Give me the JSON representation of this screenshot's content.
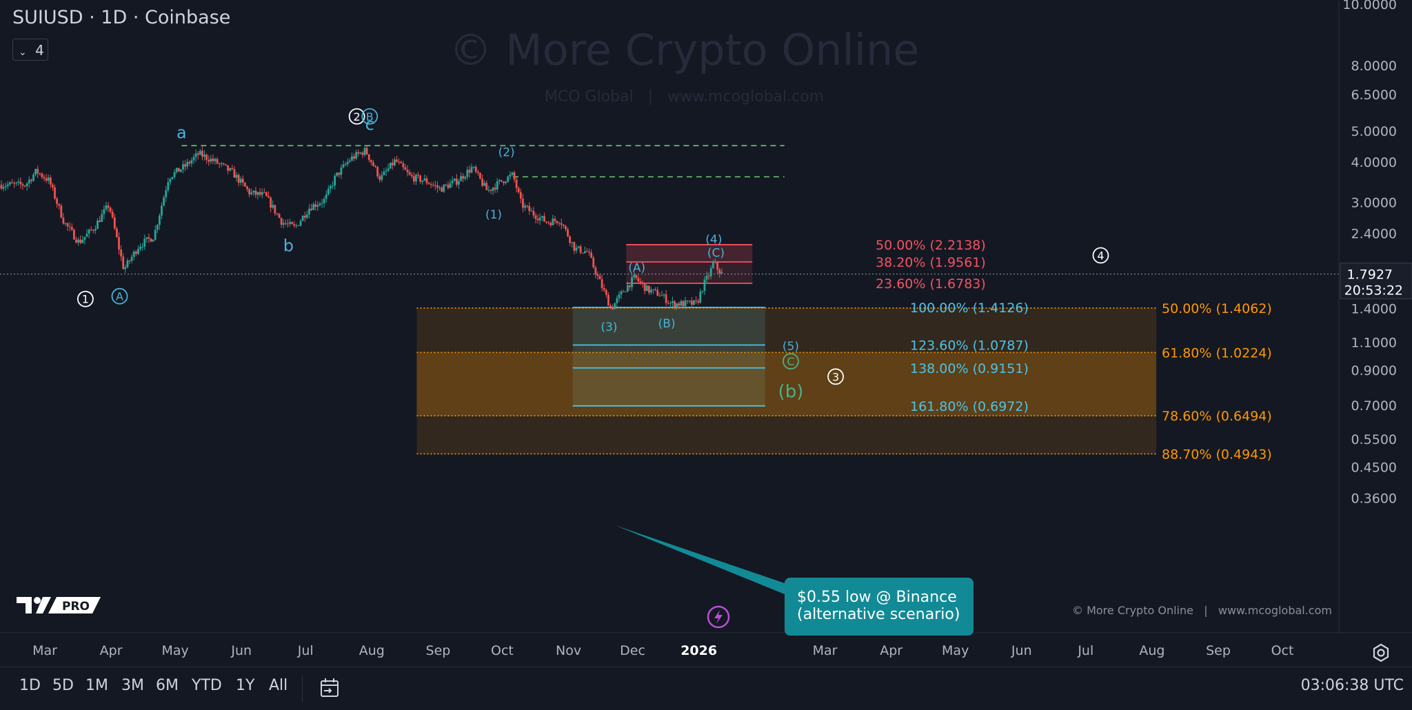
{
  "header": {
    "symbol_title": "SUIUSD · 1D · Coinbase",
    "indicator_count": "4"
  },
  "watermark": {
    "main": "© More Crypto Online",
    "sub": "MCO Global   |   www.mcoglobal.com"
  },
  "copyright": "© More Crypto Online   |   www.mcoglobal.com",
  "callout": {
    "line1": "$0.55 low @ Binance",
    "line2": "(alternative scenario)"
  },
  "timeframes": [
    "1D",
    "5D",
    "1M",
    "3M",
    "6M",
    "YTD",
    "1Y",
    "All"
  ],
  "clock": "03:06:38 UTC",
  "colors": {
    "background": "#141823",
    "up_candle": "#26a69a",
    "down_candle": "#ef5350",
    "red_zone": "#f7525f",
    "blue_zone": "#4dc3e8",
    "orange_zone": "#ff9800",
    "green_dashed": "#6ccf6c",
    "wave_cyan": "#46b4d8",
    "wave_green": "#4caf8a",
    "callout": "#128a96"
  },
  "chart_data": {
    "type": "candlestick",
    "symbol": "SUIUSD",
    "interval": "1D",
    "exchange": "Coinbase",
    "y_scale": "log",
    "x_ticks": [
      "Mar",
      "Apr",
      "May",
      "Jun",
      "Jul",
      "Aug",
      "Sep",
      "Oct",
      "Nov",
      "Dec",
      "2026",
      "Mar",
      "Apr",
      "May",
      "Jun",
      "Jul",
      "Aug",
      "Sep",
      "Oct"
    ],
    "y_ticks": [
      "10.0000",
      "8.0000",
      "6.5000",
      "5.0000",
      "4.0000",
      "3.0000",
      "2.4000",
      "1.4000",
      "1.1000",
      "0.9000",
      "0.7000",
      "0.5500",
      "0.4500",
      "0.3600"
    ],
    "price_tick_values": [
      10,
      8,
      6.5,
      5,
      4,
      3,
      2.4,
      1.4,
      1.1,
      0.9,
      0.7,
      0.55,
      0.45,
      0.36
    ],
    "last_price": "1.7927",
    "last_price_value": 1.7927,
    "bar_countdown": "20:53:22",
    "price_path": [
      {
        "date": "2025-02-20",
        "price": 3.4
      },
      {
        "date": "2025-02-25",
        "price": 3.75
      },
      {
        "date": "2025-03-03",
        "price": 3.5
      },
      {
        "date": "2025-03-10",
        "price": 2.6
      },
      {
        "date": "2025-03-17",
        "price": 2.25
      },
      {
        "date": "2025-03-24",
        "price": 2.5
      },
      {
        "date": "2025-03-31",
        "price": 2.95
      },
      {
        "date": "2025-04-07",
        "price": 1.85
      },
      {
        "date": "2025-04-14",
        "price": 2.2
      },
      {
        "date": "2025-04-21",
        "price": 2.35
      },
      {
        "date": "2025-04-28",
        "price": 3.6
      },
      {
        "date": "2025-05-06",
        "price": 3.9
      },
      {
        "date": "2025-05-12",
        "price": 4.25
      },
      {
        "date": "2025-05-20",
        "price": 4.0
      },
      {
        "date": "2025-05-28",
        "price": 3.7
      },
      {
        "date": "2025-06-05",
        "price": 3.2
      },
      {
        "date": "2025-06-12",
        "price": 3.15
      },
      {
        "date": "2025-06-20",
        "price": 2.6
      },
      {
        "date": "2025-06-26",
        "price": 2.5
      },
      {
        "date": "2025-07-03",
        "price": 2.9
      },
      {
        "date": "2025-07-10",
        "price": 3.05
      },
      {
        "date": "2025-07-15",
        "price": 3.6
      },
      {
        "date": "2025-07-22",
        "price": 4.1
      },
      {
        "date": "2025-07-29",
        "price": 4.35
      },
      {
        "date": "2025-08-05",
        "price": 3.55
      },
      {
        "date": "2025-08-12",
        "price": 4.05
      },
      {
        "date": "2025-08-19",
        "price": 3.6
      },
      {
        "date": "2025-08-26",
        "price": 3.5
      },
      {
        "date": "2025-09-02",
        "price": 3.3
      },
      {
        "date": "2025-09-10",
        "price": 3.5
      },
      {
        "date": "2025-09-17",
        "price": 3.85
      },
      {
        "date": "2025-09-24",
        "price": 3.25
      },
      {
        "date": "2025-10-01",
        "price": 3.5
      },
      {
        "date": "2025-10-06",
        "price": 3.65
      },
      {
        "date": "2025-10-10",
        "price": 2.95
      },
      {
        "date": "2025-10-16",
        "price": 2.75
      },
      {
        "date": "2025-10-22",
        "price": 2.6
      },
      {
        "date": "2025-10-28",
        "price": 2.65
      },
      {
        "date": "2025-11-04",
        "price": 2.15
      },
      {
        "date": "2025-11-10",
        "price": 2.1
      },
      {
        "date": "2025-11-14",
        "price": 1.8
      },
      {
        "date": "2025-11-21",
        "price": 1.4
      },
      {
        "date": "2025-11-27",
        "price": 1.6
      },
      {
        "date": "2025-12-02",
        "price": 1.75
      },
      {
        "date": "2025-12-08",
        "price": 1.6
      },
      {
        "date": "2025-12-14",
        "price": 1.55
      },
      {
        "date": "2025-12-19",
        "price": 1.45
      },
      {
        "date": "2025-12-26",
        "price": 1.45
      },
      {
        "date": "2025-12-31",
        "price": 1.45
      },
      {
        "date": "2026-01-03",
        "price": 1.65
      },
      {
        "date": "2026-01-06",
        "price": 1.8
      },
      {
        "date": "2026-01-08",
        "price": 1.95
      },
      {
        "date": "2026-01-10",
        "price": 1.85
      },
      {
        "date": "2026-01-12",
        "price": 1.7927
      }
    ],
    "zones": [
      {
        "name": "red-fib-top",
        "from_date": "2025-11-28",
        "to_date": "2026-01-26",
        "low": 1.9561,
        "high": 2.2138,
        "color": "#f7525f"
      },
      {
        "name": "red-fib-bottom",
        "from_date": "2025-11-28",
        "to_date": "2026-01-26",
        "low": 1.6783,
        "high": 1.9561,
        "color": "#f7525f"
      },
      {
        "name": "blue-fib",
        "from_date": "2025-11-03",
        "to_date": "2026-02-01",
        "low": 0.6972,
        "high": 1.4126,
        "color": "#4dc3e8"
      },
      {
        "name": "orange-fib-outer",
        "from_date": "2025-08-22",
        "to_date": "2026-08-03",
        "low": 0.4943,
        "high": 1.4062,
        "color": "#ff9800"
      },
      {
        "name": "orange-fib-inner",
        "from_date": "2025-08-22",
        "to_date": "2026-08-03",
        "low": 0.6494,
        "high": 1.0224,
        "color": "#ff9800"
      }
    ],
    "fib_levels": [
      {
        "label": "50.00% (2.2138)",
        "price": 2.2138,
        "group": "red"
      },
      {
        "label": "38.20% (1.9561)",
        "price": 1.9561,
        "group": "red"
      },
      {
        "label": "23.60% (1.6783)",
        "price": 1.6783,
        "group": "red"
      },
      {
        "label": "100.00% (1.4126)",
        "price": 1.4126,
        "group": "blue"
      },
      {
        "label": "123.60% (1.0787)",
        "price": 1.0787,
        "group": "blue"
      },
      {
        "label": "138.00% (0.9151)",
        "price": 0.9151,
        "group": "blue"
      },
      {
        "label": "161.80% (0.6972)",
        "price": 0.6972,
        "group": "blue"
      },
      {
        "label": "50.00% (1.4062)",
        "price": 1.4062,
        "group": "orange"
      },
      {
        "label": "61.80% (1.0224)",
        "price": 1.0224,
        "group": "orange"
      },
      {
        "label": "78.60% (0.6494)",
        "price": 0.6494,
        "group": "orange"
      },
      {
        "label": "88.70% (0.4943)",
        "price": 0.4943,
        "group": "orange"
      }
    ],
    "dashed_lines": [
      {
        "price": 4.5,
        "from_date": "2025-05-04",
        "to_date": "2026-02-10"
      },
      {
        "price": 3.6,
        "from_date": "2025-10-06",
        "to_date": "2026-02-10"
      }
    ],
    "wave_labels": [
      {
        "text": "1",
        "style": "circle-white",
        "date": "2025-03-20",
        "price": 1.5
      },
      {
        "text": "A",
        "style": "circle-cyan",
        "date": "2025-04-05",
        "price": 1.53
      },
      {
        "text": "a",
        "style": "cyan",
        "date": "2025-05-04",
        "price": 4.95
      },
      {
        "text": "b",
        "style": "cyan",
        "date": "2025-06-23",
        "price": 2.2
      },
      {
        "text": "2",
        "style": "circle-white",
        "date": "2025-07-25",
        "price": 5.55
      },
      {
        "text": "B",
        "style": "circle-cyan",
        "date": "2025-07-31",
        "price": 5.55
      },
      {
        "text": "c",
        "style": "cyan",
        "date": "2025-07-31",
        "price": 5.25
      },
      {
        "text": "(2)",
        "style": "cyan-small",
        "date": "2025-10-03",
        "price": 4.3
      },
      {
        "text": "(1)",
        "style": "cyan-small",
        "date": "2025-09-27",
        "price": 2.75
      },
      {
        "text": "(A)",
        "style": "cyan-small",
        "date": "2025-12-03",
        "price": 1.88
      },
      {
        "text": "(3)",
        "style": "cyan-small",
        "date": "2025-11-20",
        "price": 1.23
      },
      {
        "text": "(B)",
        "style": "cyan-small",
        "date": "2025-12-17",
        "price": 1.26
      },
      {
        "text": "(4)",
        "style": "cyan-small",
        "date": "2026-01-08",
        "price": 2.3
      },
      {
        "text": "(C)",
        "style": "cyan-small",
        "date": "2026-01-09",
        "price": 2.09
      },
      {
        "text": "(5)",
        "style": "cyan-small",
        "date": "2026-02-13",
        "price": 1.07
      },
      {
        "text": "C",
        "style": "circle-cyan",
        "date": "2026-02-13",
        "price": 0.96
      },
      {
        "text": "(b)",
        "style": "green-large",
        "date": "2026-02-13",
        "price": 0.775
      },
      {
        "text": "3",
        "style": "circle-white",
        "date": "2026-03-06",
        "price": 0.86
      },
      {
        "text": "4",
        "style": "circle-white",
        "date": "2026-07-08",
        "price": 2.05
      }
    ]
  }
}
